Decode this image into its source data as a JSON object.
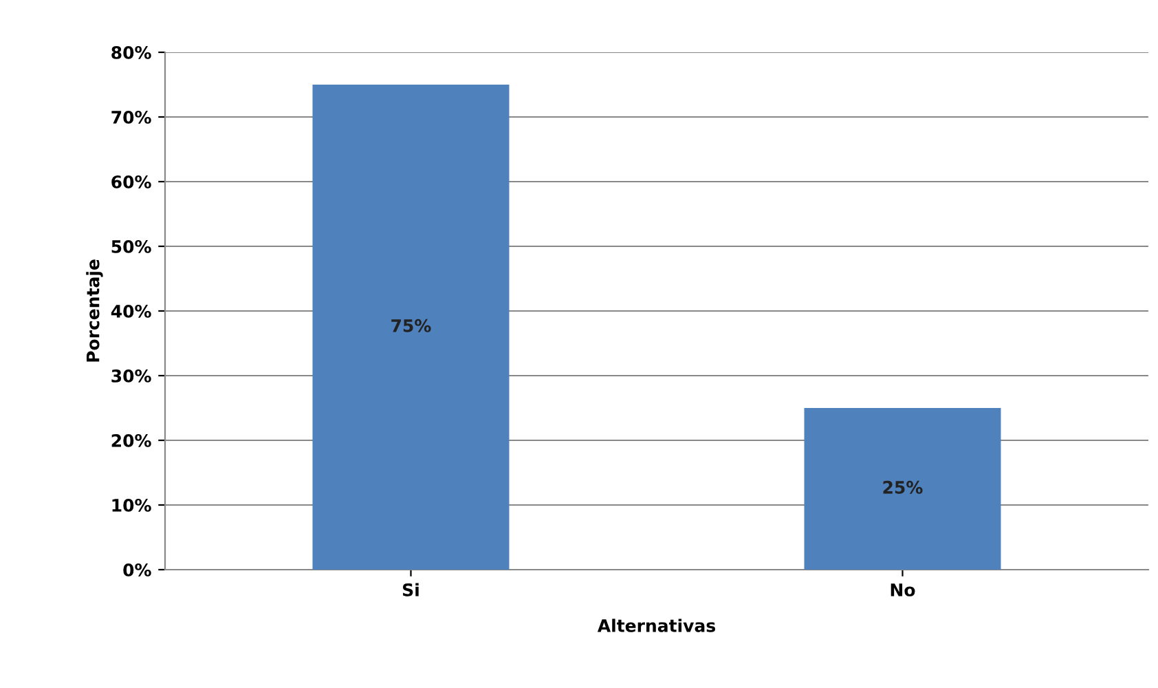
{
  "chart_data": {
    "type": "bar",
    "xlabel": "Alternativas",
    "ylabel": "Porcentaje",
    "categories": [
      "Si",
      "No"
    ],
    "values": [
      75,
      25
    ],
    "color": "#4f81bd",
    "value_labels": [
      "75%",
      "25%"
    ],
    "ylim": [
      0,
      80
    ],
    "yticks": [
      {
        "value": 0,
        "label": "0%"
      },
      {
        "value": 10,
        "label": "10%"
      },
      {
        "value": 20,
        "label": "20%"
      },
      {
        "value": 30,
        "label": "30%"
      },
      {
        "value": 40,
        "label": "40%"
      },
      {
        "value": 50,
        "label": "50%"
      },
      {
        "value": 60,
        "label": "60%"
      },
      {
        "value": 70,
        "label": "70%"
      },
      {
        "value": 80,
        "label": "80%"
      }
    ],
    "grid": "y"
  }
}
